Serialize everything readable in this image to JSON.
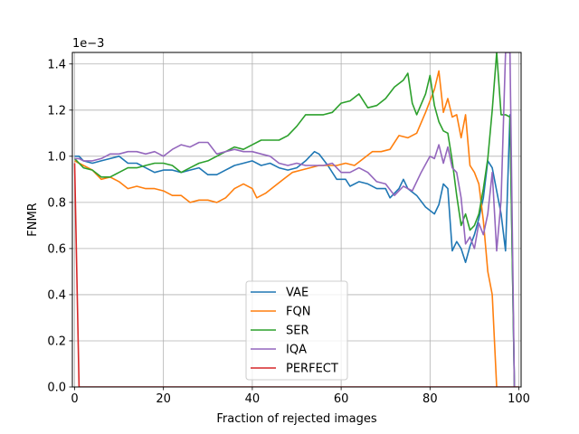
{
  "chart_data": {
    "type": "line",
    "title": "",
    "xlabel": "Fraction of rejected images",
    "ylabel": "FNMR",
    "y_offset_label": "1e−3",
    "xlim": [
      -0.5,
      100.5
    ],
    "ylim": [
      0,
      1.45
    ],
    "x_ticks": [
      0,
      20,
      40,
      60,
      80,
      100
    ],
    "y_ticks": [
      0.0,
      0.2,
      0.4,
      0.6,
      0.8,
      1.0,
      1.2,
      1.4
    ],
    "grid": true,
    "legend_position": "lower-center",
    "series": [
      {
        "name": "VAE",
        "color": "#1f77b4",
        "points": [
          [
            0,
            1.0
          ],
          [
            1,
            1.0
          ],
          [
            2,
            0.98
          ],
          [
            4,
            0.97
          ],
          [
            6,
            0.98
          ],
          [
            8,
            0.99
          ],
          [
            10,
            1.0
          ],
          [
            12,
            0.97
          ],
          [
            14,
            0.97
          ],
          [
            16,
            0.95
          ],
          [
            18,
            0.93
          ],
          [
            20,
            0.94
          ],
          [
            22,
            0.94
          ],
          [
            24,
            0.93
          ],
          [
            26,
            0.94
          ],
          [
            28,
            0.95
          ],
          [
            30,
            0.92
          ],
          [
            32,
            0.92
          ],
          [
            34,
            0.94
          ],
          [
            36,
            0.96
          ],
          [
            38,
            0.97
          ],
          [
            40,
            0.98
          ],
          [
            42,
            0.96
          ],
          [
            44,
            0.97
          ],
          [
            46,
            0.95
          ],
          [
            48,
            0.94
          ],
          [
            50,
            0.95
          ],
          [
            52,
            0.98
          ],
          [
            54,
            1.02
          ],
          [
            55,
            1.01
          ],
          [
            57,
            0.96
          ],
          [
            59,
            0.9
          ],
          [
            61,
            0.9
          ],
          [
            62,
            0.87
          ],
          [
            64,
            0.89
          ],
          [
            66,
            0.88
          ],
          [
            68,
            0.86
          ],
          [
            70,
            0.86
          ],
          [
            71,
            0.82
          ],
          [
            73,
            0.86
          ],
          [
            74,
            0.9
          ],
          [
            75,
            0.86
          ],
          [
            77,
            0.83
          ],
          [
            79,
            0.78
          ],
          [
            81,
            0.75
          ],
          [
            82,
            0.79
          ],
          [
            83,
            0.88
          ],
          [
            84,
            0.86
          ],
          [
            85,
            0.59
          ],
          [
            86,
            0.63
          ],
          [
            87,
            0.6
          ],
          [
            88,
            0.54
          ],
          [
            89,
            0.61
          ],
          [
            90,
            0.66
          ],
          [
            91,
            0.73
          ],
          [
            92,
            0.82
          ],
          [
            93,
            0.98
          ],
          [
            94,
            0.95
          ],
          [
            95,
            0.85
          ],
          [
            96,
            0.75
          ],
          [
            97,
            0.59
          ],
          [
            98,
            1.18
          ],
          [
            99,
            0.0
          ]
        ]
      },
      {
        "name": "FQN",
        "color": "#ff7f0e",
        "points": [
          [
            0,
            0.98
          ],
          [
            1,
            0.97
          ],
          [
            2,
            0.96
          ],
          [
            4,
            0.94
          ],
          [
            6,
            0.9
          ],
          [
            8,
            0.91
          ],
          [
            10,
            0.89
          ],
          [
            12,
            0.86
          ],
          [
            14,
            0.87
          ],
          [
            16,
            0.86
          ],
          [
            18,
            0.86
          ],
          [
            20,
            0.85
          ],
          [
            22,
            0.83
          ],
          [
            24,
            0.83
          ],
          [
            26,
            0.8
          ],
          [
            28,
            0.81
          ],
          [
            30,
            0.81
          ],
          [
            32,
            0.8
          ],
          [
            34,
            0.82
          ],
          [
            36,
            0.86
          ],
          [
            38,
            0.88
          ],
          [
            40,
            0.86
          ],
          [
            41,
            0.82
          ],
          [
            43,
            0.84
          ],
          [
            45,
            0.87
          ],
          [
            47,
            0.9
          ],
          [
            49,
            0.93
          ],
          [
            51,
            0.94
          ],
          [
            53,
            0.95
          ],
          [
            55,
            0.96
          ],
          [
            57,
            0.96
          ],
          [
            59,
            0.96
          ],
          [
            61,
            0.97
          ],
          [
            63,
            0.96
          ],
          [
            65,
            0.99
          ],
          [
            67,
            1.02
          ],
          [
            69,
            1.02
          ],
          [
            71,
            1.03
          ],
          [
            73,
            1.09
          ],
          [
            75,
            1.08
          ],
          [
            77,
            1.1
          ],
          [
            79,
            1.19
          ],
          [
            81,
            1.29
          ],
          [
            82,
            1.37
          ],
          [
            83,
            1.19
          ],
          [
            84,
            1.25
          ],
          [
            85,
            1.17
          ],
          [
            86,
            1.18
          ],
          [
            87,
            1.08
          ],
          [
            88,
            1.18
          ],
          [
            89,
            0.96
          ],
          [
            90,
            0.93
          ],
          [
            91,
            0.88
          ],
          [
            92,
            0.72
          ],
          [
            93,
            0.5
          ],
          [
            94,
            0.4
          ],
          [
            95,
            0.0
          ]
        ]
      },
      {
        "name": "SER",
        "color": "#2ca02c",
        "points": [
          [
            0,
            0.99
          ],
          [
            1,
            0.97
          ],
          [
            2,
            0.95
          ],
          [
            4,
            0.94
          ],
          [
            6,
            0.91
          ],
          [
            8,
            0.91
          ],
          [
            10,
            0.93
          ],
          [
            12,
            0.95
          ],
          [
            14,
            0.95
          ],
          [
            16,
            0.96
          ],
          [
            18,
            0.97
          ],
          [
            20,
            0.97
          ],
          [
            22,
            0.96
          ],
          [
            24,
            0.93
          ],
          [
            26,
            0.95
          ],
          [
            28,
            0.97
          ],
          [
            30,
            0.98
          ],
          [
            32,
            1.0
          ],
          [
            34,
            1.02
          ],
          [
            36,
            1.04
          ],
          [
            38,
            1.03
          ],
          [
            40,
            1.05
          ],
          [
            42,
            1.07
          ],
          [
            44,
            1.07
          ],
          [
            46,
            1.07
          ],
          [
            48,
            1.09
          ],
          [
            50,
            1.13
          ],
          [
            52,
            1.18
          ],
          [
            54,
            1.18
          ],
          [
            56,
            1.18
          ],
          [
            58,
            1.19
          ],
          [
            60,
            1.23
          ],
          [
            62,
            1.24
          ],
          [
            64,
            1.27
          ],
          [
            66,
            1.21
          ],
          [
            68,
            1.22
          ],
          [
            70,
            1.25
          ],
          [
            72,
            1.3
          ],
          [
            74,
            1.33
          ],
          [
            75,
            1.36
          ],
          [
            76,
            1.23
          ],
          [
            77,
            1.18
          ],
          [
            79,
            1.27
          ],
          [
            80,
            1.35
          ],
          [
            81,
            1.22
          ],
          [
            82,
            1.15
          ],
          [
            83,
            1.11
          ],
          [
            84,
            1.1
          ],
          [
            85,
            0.98
          ],
          [
            86,
            0.83
          ],
          [
            87,
            0.7
          ],
          [
            88,
            0.75
          ],
          [
            89,
            0.68
          ],
          [
            90,
            0.7
          ],
          [
            91,
            0.75
          ],
          [
            92,
            0.86
          ],
          [
            93,
            0.99
          ],
          [
            94,
            1.2
          ],
          [
            95,
            1.45
          ],
          [
            96,
            1.18
          ],
          [
            97,
            1.18
          ],
          [
            98,
            1.17
          ],
          [
            99,
            0.0
          ]
        ]
      },
      {
        "name": "IQA",
        "color": "#9467bd",
        "points": [
          [
            0,
            0.99
          ],
          [
            1,
            0.99
          ],
          [
            2,
            0.98
          ],
          [
            4,
            0.98
          ],
          [
            6,
            0.99
          ],
          [
            8,
            1.01
          ],
          [
            10,
            1.01
          ],
          [
            12,
            1.02
          ],
          [
            14,
            1.02
          ],
          [
            16,
            1.01
          ],
          [
            18,
            1.02
          ],
          [
            20,
            1.0
          ],
          [
            22,
            1.03
          ],
          [
            24,
            1.05
          ],
          [
            26,
            1.04
          ],
          [
            28,
            1.06
          ],
          [
            30,
            1.06
          ],
          [
            32,
            1.01
          ],
          [
            34,
            1.02
          ],
          [
            36,
            1.03
          ],
          [
            38,
            1.02
          ],
          [
            40,
            1.02
          ],
          [
            42,
            1.01
          ],
          [
            44,
            1.0
          ],
          [
            46,
            0.97
          ],
          [
            48,
            0.96
          ],
          [
            50,
            0.97
          ],
          [
            52,
            0.96
          ],
          [
            54,
            0.96
          ],
          [
            56,
            0.96
          ],
          [
            58,
            0.97
          ],
          [
            60,
            0.93
          ],
          [
            62,
            0.93
          ],
          [
            64,
            0.95
          ],
          [
            66,
            0.93
          ],
          [
            68,
            0.89
          ],
          [
            70,
            0.88
          ],
          [
            72,
            0.83
          ],
          [
            74,
            0.87
          ],
          [
            76,
            0.85
          ],
          [
            78,
            0.93
          ],
          [
            80,
            1.0
          ],
          [
            81,
            0.99
          ],
          [
            82,
            1.05
          ],
          [
            83,
            0.97
          ],
          [
            84,
            1.04
          ],
          [
            85,
            0.95
          ],
          [
            86,
            0.93
          ],
          [
            87,
            0.82
          ],
          [
            88,
            0.62
          ],
          [
            89,
            0.65
          ],
          [
            90,
            0.6
          ],
          [
            91,
            0.71
          ],
          [
            92,
            0.66
          ],
          [
            93,
            0.75
          ],
          [
            94,
            0.93
          ],
          [
            95,
            0.59
          ],
          [
            96,
            0.81
          ],
          [
            97,
            1.45
          ],
          [
            98,
            1.45
          ],
          [
            99,
            0.0
          ]
        ]
      },
      {
        "name": "PERFECT",
        "color": "#d62728",
        "points": [
          [
            0,
            0.97
          ],
          [
            1,
            0.0
          ],
          [
            100,
            0.0
          ]
        ]
      }
    ]
  }
}
